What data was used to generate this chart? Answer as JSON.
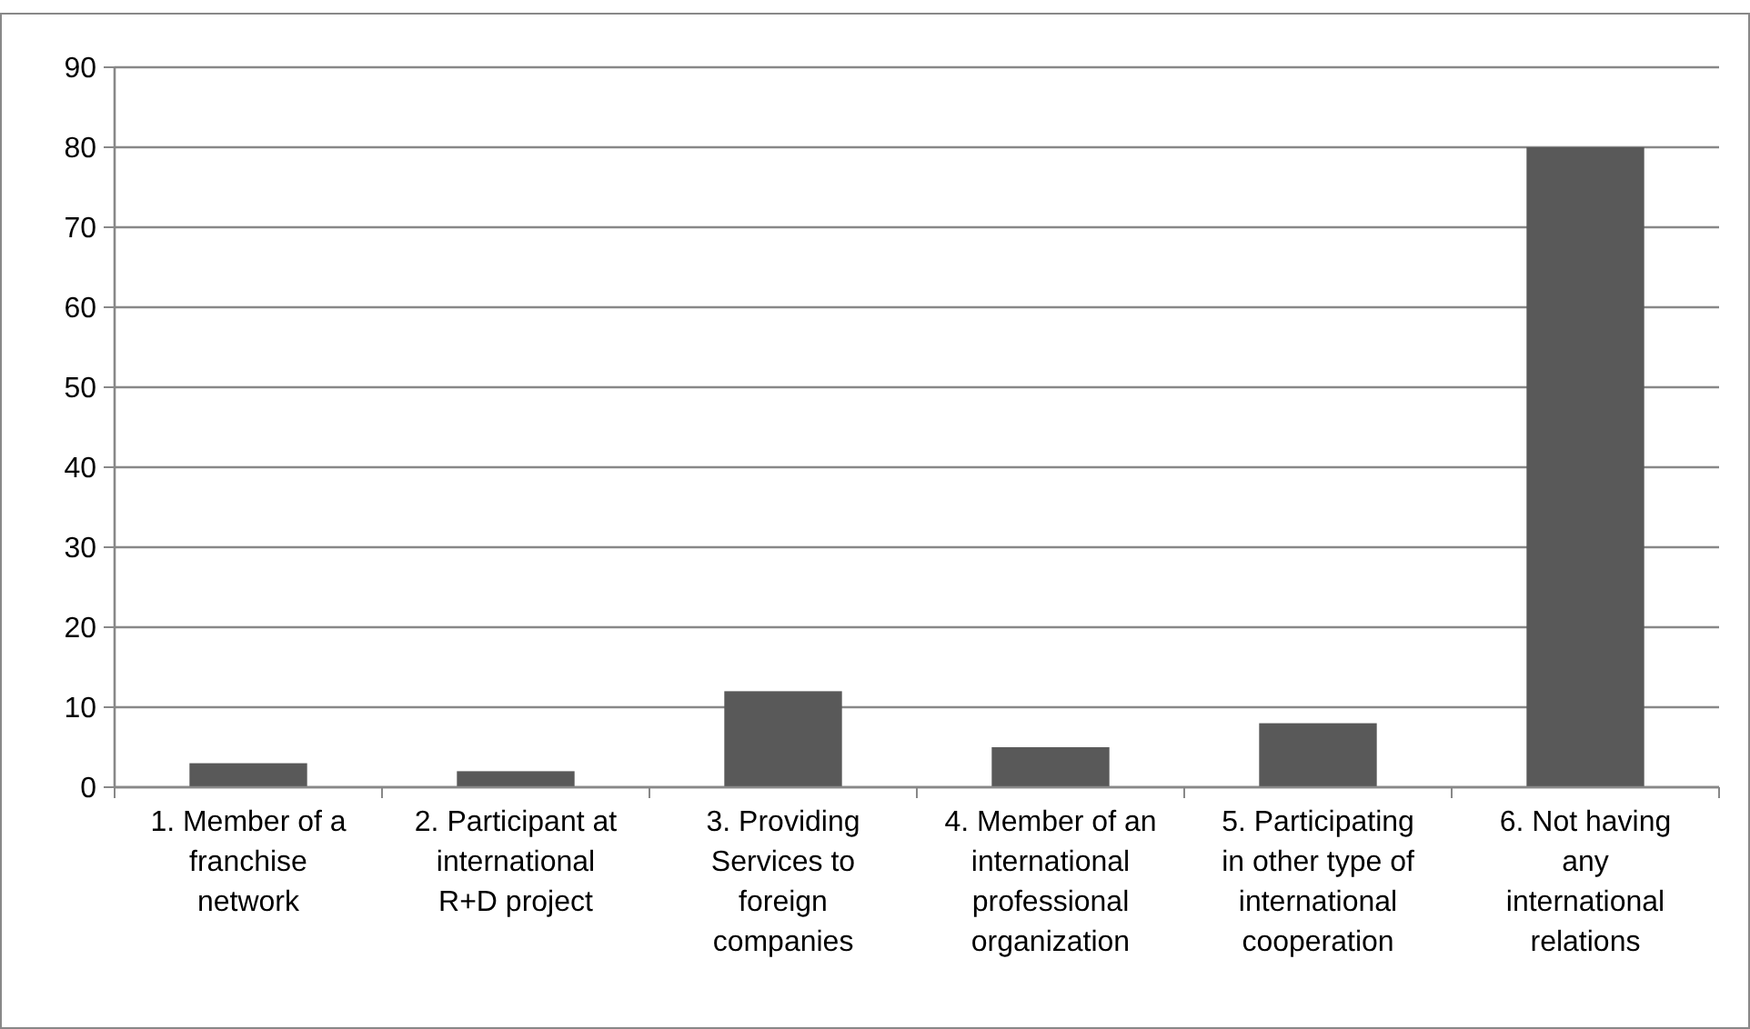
{
  "chart_data": {
    "type": "bar",
    "categories": [
      "1. Member of a franchise network",
      "2. Participant at international R+D project",
      "3. Providing Services to foreign companies",
      "4. Member of an international professional organization",
      "5. Participating in other type of international cooperation",
      "6. Not having any international relations"
    ],
    "values": [
      3,
      2,
      12,
      5,
      8,
      80
    ],
    "color": "#595959",
    "ylim": [
      0,
      90
    ],
    "yticks": [
      0,
      10,
      20,
      30,
      40,
      50,
      60,
      70,
      80,
      90
    ],
    "grid": "y"
  }
}
